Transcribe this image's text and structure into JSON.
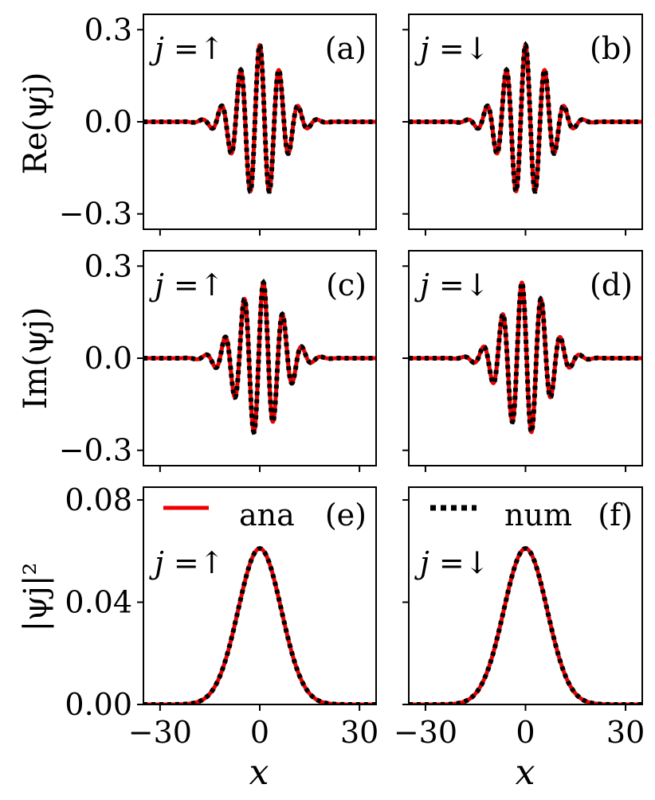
{
  "figure": {
    "panels": [
      {
        "id": "a",
        "letter": "(a)",
        "spin_label": "j =↑",
        "quantity": "re",
        "spin": "up"
      },
      {
        "id": "b",
        "letter": "(b)",
        "spin_label": "j =↓",
        "quantity": "re",
        "spin": "down"
      },
      {
        "id": "c",
        "letter": "(c)",
        "spin_label": "j =↑",
        "quantity": "im",
        "spin": "up"
      },
      {
        "id": "d",
        "letter": "(d)",
        "spin_label": "j =↓",
        "quantity": "im",
        "spin": "down"
      },
      {
        "id": "e",
        "letter": "(e)",
        "spin_label": "j =↑",
        "quantity": "dens",
        "spin": "up"
      },
      {
        "id": "f",
        "letter": "(f)",
        "spin_label": "j =↓",
        "quantity": "dens",
        "spin": "down"
      }
    ],
    "row_ylabels": [
      "Re(ψj)",
      "Im(ψj)",
      "|ψj|²"
    ],
    "xlabel": "x",
    "legend": [
      {
        "name": "ana",
        "style": "solid",
        "color": "#ee0000"
      },
      {
        "name": "num",
        "style": "dotted",
        "color": "#000000"
      }
    ],
    "colors": {
      "analytic": "#ee0000",
      "numeric": "#000000"
    }
  },
  "chart_data": [
    {
      "panel": "a",
      "type": "line",
      "title": "",
      "xlabel": "",
      "ylabel": "Re(ψj)",
      "xlim": [
        -35,
        35
      ],
      "ylim": [
        -0.35,
        0.35
      ],
      "xticks": [
        -30,
        0,
        30
      ],
      "xtick_labels": [],
      "yticks": [
        -0.3,
        0.0,
        0.3
      ],
      "ytick_labels": [
        "−0.3",
        "0.0",
        "0.3"
      ],
      "model": {
        "envelope_amplitude": 0.25,
        "gaussian_width": 6.5,
        "wavenumber": 1.08,
        "phase": 0.0
      },
      "series": [
        {
          "name": "ana",
          "style": "solid"
        },
        {
          "name": "num",
          "style": "dotted"
        }
      ],
      "grid": false
    },
    {
      "panel": "b",
      "type": "line",
      "title": "",
      "xlabel": "",
      "ylabel": "",
      "xlim": [
        -35,
        35
      ],
      "ylim": [
        -0.35,
        0.35
      ],
      "xticks": [
        -30,
        0,
        30
      ],
      "xtick_labels": [],
      "yticks": [
        -0.3,
        0.0,
        0.3
      ],
      "ytick_labels": [],
      "model": {
        "envelope_amplitude": 0.25,
        "gaussian_width": 6.5,
        "wavenumber": 1.08,
        "phase": 0.0
      },
      "series": [
        {
          "name": "ana",
          "style": "solid"
        },
        {
          "name": "num",
          "style": "dotted"
        }
      ],
      "grid": false
    },
    {
      "panel": "c",
      "type": "line",
      "title": "",
      "xlabel": "",
      "ylabel": "Im(ψj)",
      "xlim": [
        -35,
        35
      ],
      "ylim": [
        -0.35,
        0.35
      ],
      "xticks": [
        -30,
        0,
        30
      ],
      "xtick_labels": [],
      "yticks": [
        -0.3,
        0.0,
        0.3
      ],
      "ytick_labels": [
        "−0.3",
        "0.0",
        "0.3"
      ],
      "model": {
        "envelope_amplitude": 0.25,
        "gaussian_width": 6.5,
        "wavenumber": 1.08,
        "phase": -1.2
      },
      "series": [
        {
          "name": "ana",
          "style": "solid"
        },
        {
          "name": "num",
          "style": "dotted"
        }
      ],
      "grid": false
    },
    {
      "panel": "d",
      "type": "line",
      "title": "",
      "xlabel": "",
      "ylabel": "",
      "xlim": [
        -35,
        35
      ],
      "ylim": [
        -0.35,
        0.35
      ],
      "xticks": [
        -30,
        0,
        30
      ],
      "xtick_labels": [],
      "yticks": [
        -0.3,
        0.0,
        0.3
      ],
      "ytick_labels": [],
      "model": {
        "envelope_amplitude": 0.25,
        "gaussian_width": 6.5,
        "wavenumber": 1.08,
        "phase": 1.2
      },
      "series": [
        {
          "name": "ana",
          "style": "solid"
        },
        {
          "name": "num",
          "style": "dotted"
        }
      ],
      "grid": false
    },
    {
      "panel": "e",
      "type": "line",
      "title": "",
      "xlabel": "x",
      "ylabel": "|ψj|²",
      "xlim": [
        -35,
        35
      ],
      "ylim": [
        0.0,
        0.085
      ],
      "xticks": [
        -30,
        0,
        30
      ],
      "xtick_labels": [
        "−30",
        "0",
        "30"
      ],
      "yticks": [
        0.0,
        0.04,
        0.08
      ],
      "ytick_labels": [
        "0.00",
        "0.04",
        "0.08"
      ],
      "model": {
        "peak": 0.061,
        "gaussian_width": 6.5
      },
      "series": [
        {
          "name": "ana",
          "style": "solid"
        },
        {
          "name": "num",
          "style": "dotted"
        }
      ],
      "grid": false
    },
    {
      "panel": "f",
      "type": "line",
      "title": "",
      "xlabel": "x",
      "ylabel": "",
      "xlim": [
        -35,
        35
      ],
      "ylim": [
        0.0,
        0.085
      ],
      "xticks": [
        -30,
        0,
        30
      ],
      "xtick_labels": [
        "−30",
        "0",
        "30"
      ],
      "yticks": [
        0.0,
        0.04,
        0.08
      ],
      "ytick_labels": [],
      "model": {
        "peak": 0.061,
        "gaussian_width": 6.5
      },
      "series": [
        {
          "name": "ana",
          "style": "solid"
        },
        {
          "name": "num",
          "style": "dotted"
        }
      ],
      "grid": false
    }
  ]
}
